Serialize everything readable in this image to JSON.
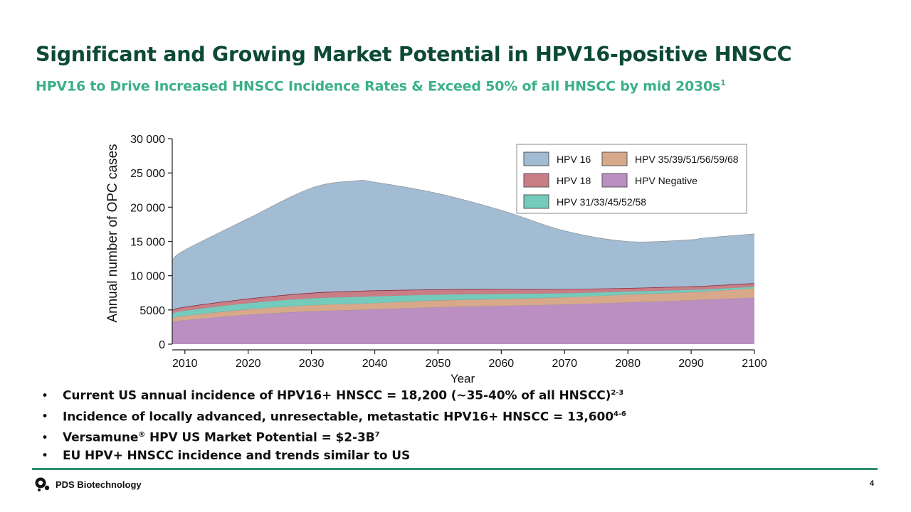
{
  "slide": {
    "title": "Significant and Growing Market Potential in HPV16-positive HNSCC",
    "subtitle": "HPV16 to Drive Increased HNSCC Incidence Rates & Exceed 50% of all HNSCC by mid 2030s",
    "subtitle_ref": "1",
    "page_number": "4"
  },
  "bullets": [
    {
      "text": "Current US annual incidence of HPV16+ HNSCC = 18,200 (~35-40% of all HNSCC)",
      "ref": "2-3"
    },
    {
      "text": "Incidence of locally advanced, unresectable, metastatic HPV16+ HNSCC = 13,600",
      "ref": "4-6"
    },
    {
      "text": "Versamune",
      "reg": "®",
      "text_after": " HPV US Market Potential = $2-3B",
      "ref": "7"
    },
    {
      "text": "EU HPV+ HNSCC incidence and trends similar to US",
      "ref": ""
    }
  ],
  "bullet_glyph": "•",
  "footer": {
    "company": "PDS Biotechnology"
  },
  "chart_data": {
    "type": "area",
    "stacked": true,
    "xlabel": "Year",
    "ylabel": "Annual number of OPC cases",
    "x": [
      2008,
      2010,
      2020,
      2030,
      2037,
      2040,
      2050,
      2060,
      2070,
      2080,
      2090,
      2092,
      2100
    ],
    "x_ticks": [
      2010,
      2020,
      2030,
      2040,
      2050,
      2060,
      2070,
      2080,
      2090,
      2100
    ],
    "x_tick_labels": [
      "2010",
      "2020",
      "2030",
      "2040",
      "2050",
      "2060",
      "2070",
      "2080",
      "2090",
      "2100"
    ],
    "y_ticks": [
      0,
      5000,
      10000,
      15000,
      20000,
      25000,
      30000
    ],
    "y_tick_labels": [
      "0",
      "5000",
      "10 000",
      "15 000",
      "20 000",
      "25 000",
      "30 000"
    ],
    "xlim": [
      2008,
      2100
    ],
    "ylim": [
      0,
      30000
    ],
    "series": [
      {
        "name": "HPV Negative",
        "color": "#bc8fc3",
        "values": [
          3200,
          3500,
          4300,
          4800,
          5000,
          5100,
          5400,
          5600,
          5800,
          6100,
          6400,
          6500,
          6800
        ]
      },
      {
        "name": "HPV 35/39/51/56/59/68",
        "color": "#d7a98a",
        "values": [
          600,
          650,
          800,
          900,
          900,
          900,
          1000,
          1000,
          1050,
          1150,
          1200,
          1200,
          1350
        ]
      },
      {
        "name": "HPV 31/33/45/52/58",
        "color": "#74cbbc",
        "values": [
          700,
          750,
          900,
          1000,
          1000,
          1000,
          850,
          750,
          600,
          450,
          350,
          300,
          250
        ]
      },
      {
        "name": "HPV 18",
        "color": "#c97e87",
        "values": [
          500,
          550,
          650,
          800,
          850,
          850,
          750,
          700,
          600,
          500,
          500,
          500,
          500
        ]
      },
      {
        "name": "HPV 16",
        "color": "#a1bcd3",
        "values": [
          7300,
          8300,
          11700,
          15300,
          16100,
          15800,
          14000,
          11500,
          8500,
          6800,
          6800,
          7000,
          7200
        ]
      }
    ],
    "legend": {
      "position": "top-right",
      "order": [
        "HPV 16",
        "HPV 35/39/51/56/59/68",
        "HPV 18",
        "HPV Negative",
        "HPV 31/33/45/52/58"
      ]
    },
    "grid": false
  }
}
